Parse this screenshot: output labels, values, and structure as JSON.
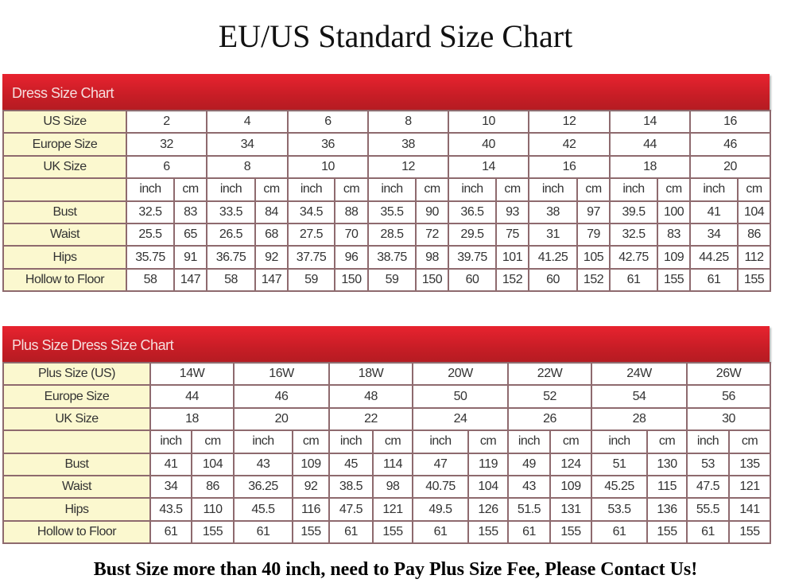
{
  "title": "EU/US Standard Size Chart",
  "colors": {
    "header_bar": "#d8202a",
    "label_bg": "#fbf8cf",
    "grid": "#8e6a6e"
  },
  "charts": [
    {
      "heading": "Dress Size Chart",
      "size_rows": [
        {
          "label": "US Size",
          "values": [
            "2",
            "4",
            "6",
            "8",
            "10",
            "12",
            "14",
            "16"
          ]
        },
        {
          "label": "Europe Size",
          "values": [
            "32",
            "34",
            "36",
            "38",
            "40",
            "42",
            "44",
            "46"
          ]
        },
        {
          "label": "UK Size",
          "values": [
            "6",
            "8",
            "10",
            "12",
            "14",
            "16",
            "18",
            "20"
          ]
        }
      ],
      "unit_inch": "inch",
      "unit_cm": "cm",
      "measure_rows": [
        {
          "label": "Bust",
          "values": [
            "32.5",
            "83",
            "33.5",
            "84",
            "34.5",
            "88",
            "35.5",
            "90",
            "36.5",
            "93",
            "38",
            "97",
            "39.5",
            "100",
            "41",
            "104"
          ]
        },
        {
          "label": "Waist",
          "values": [
            "25.5",
            "65",
            "26.5",
            "68",
            "27.5",
            "70",
            "28.5",
            "72",
            "29.5",
            "75",
            "31",
            "79",
            "32.5",
            "83",
            "34",
            "86"
          ]
        },
        {
          "label": "Hips",
          "values": [
            "35.75",
            "91",
            "36.75",
            "92",
            "37.75",
            "96",
            "38.75",
            "98",
            "39.75",
            "101",
            "41.25",
            "105",
            "42.75",
            "109",
            "44.25",
            "112"
          ]
        },
        {
          "label": "Hollow to Floor",
          "values": [
            "58",
            "147",
            "58",
            "147",
            "59",
            "150",
            "59",
            "150",
            "60",
            "152",
            "60",
            "152",
            "61",
            "155",
            "61",
            "155"
          ]
        }
      ]
    },
    {
      "heading": "Plus Size Dress Size Chart",
      "size_rows": [
        {
          "label": "Plus Size (US)",
          "values": [
            "14W",
            "16W",
            "18W",
            "20W",
            "22W",
            "24W",
            "26W"
          ]
        },
        {
          "label": "Europe Size",
          "values": [
            "44",
            "46",
            "48",
            "50",
            "52",
            "54",
            "56"
          ]
        },
        {
          "label": "UK Size",
          "values": [
            "18",
            "20",
            "22",
            "24",
            "26",
            "28",
            "30"
          ]
        }
      ],
      "unit_inch": "inch",
      "unit_cm": "cm",
      "measure_rows": [
        {
          "label": "Bust",
          "values": [
            "41",
            "104",
            "43",
            "109",
            "45",
            "114",
            "47",
            "119",
            "49",
            "124",
            "51",
            "130",
            "53",
            "135"
          ]
        },
        {
          "label": "Waist",
          "values": [
            "34",
            "86",
            "36.25",
            "92",
            "38.5",
            "98",
            "40.75",
            "104",
            "43",
            "109",
            "45.25",
            "115",
            "47.5",
            "121"
          ]
        },
        {
          "label": "Hips",
          "values": [
            "43.5",
            "110",
            "45.5",
            "116",
            "47.5",
            "121",
            "49.5",
            "126",
            "51.5",
            "131",
            "53.5",
            "136",
            "55.5",
            "141"
          ]
        },
        {
          "label": "Hollow to Floor",
          "values": [
            "61",
            "155",
            "61",
            "155",
            "61",
            "155",
            "61",
            "155",
            "61",
            "155",
            "61",
            "155",
            "61",
            "155"
          ]
        }
      ]
    }
  ],
  "footer": "Bust Size more than 40 inch, need to Pay Plus Size Fee, Please Contact Us!"
}
